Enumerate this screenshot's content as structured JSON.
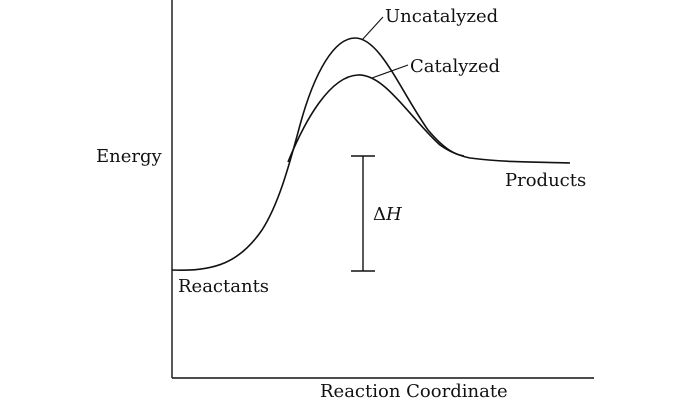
{
  "diagram": {
    "y_axis_label": "Energy",
    "x_axis_label": "Reaction Coordinate",
    "labels": {
      "uncatalyzed": "Uncatalyzed",
      "catalyzed": "Catalyzed",
      "reactants": "Reactants",
      "products": "Products",
      "delta_h_symbol": "Δ",
      "delta_h_var": "H"
    },
    "colors": {
      "ink": "#111111",
      "background": "#ffffff"
    }
  }
}
